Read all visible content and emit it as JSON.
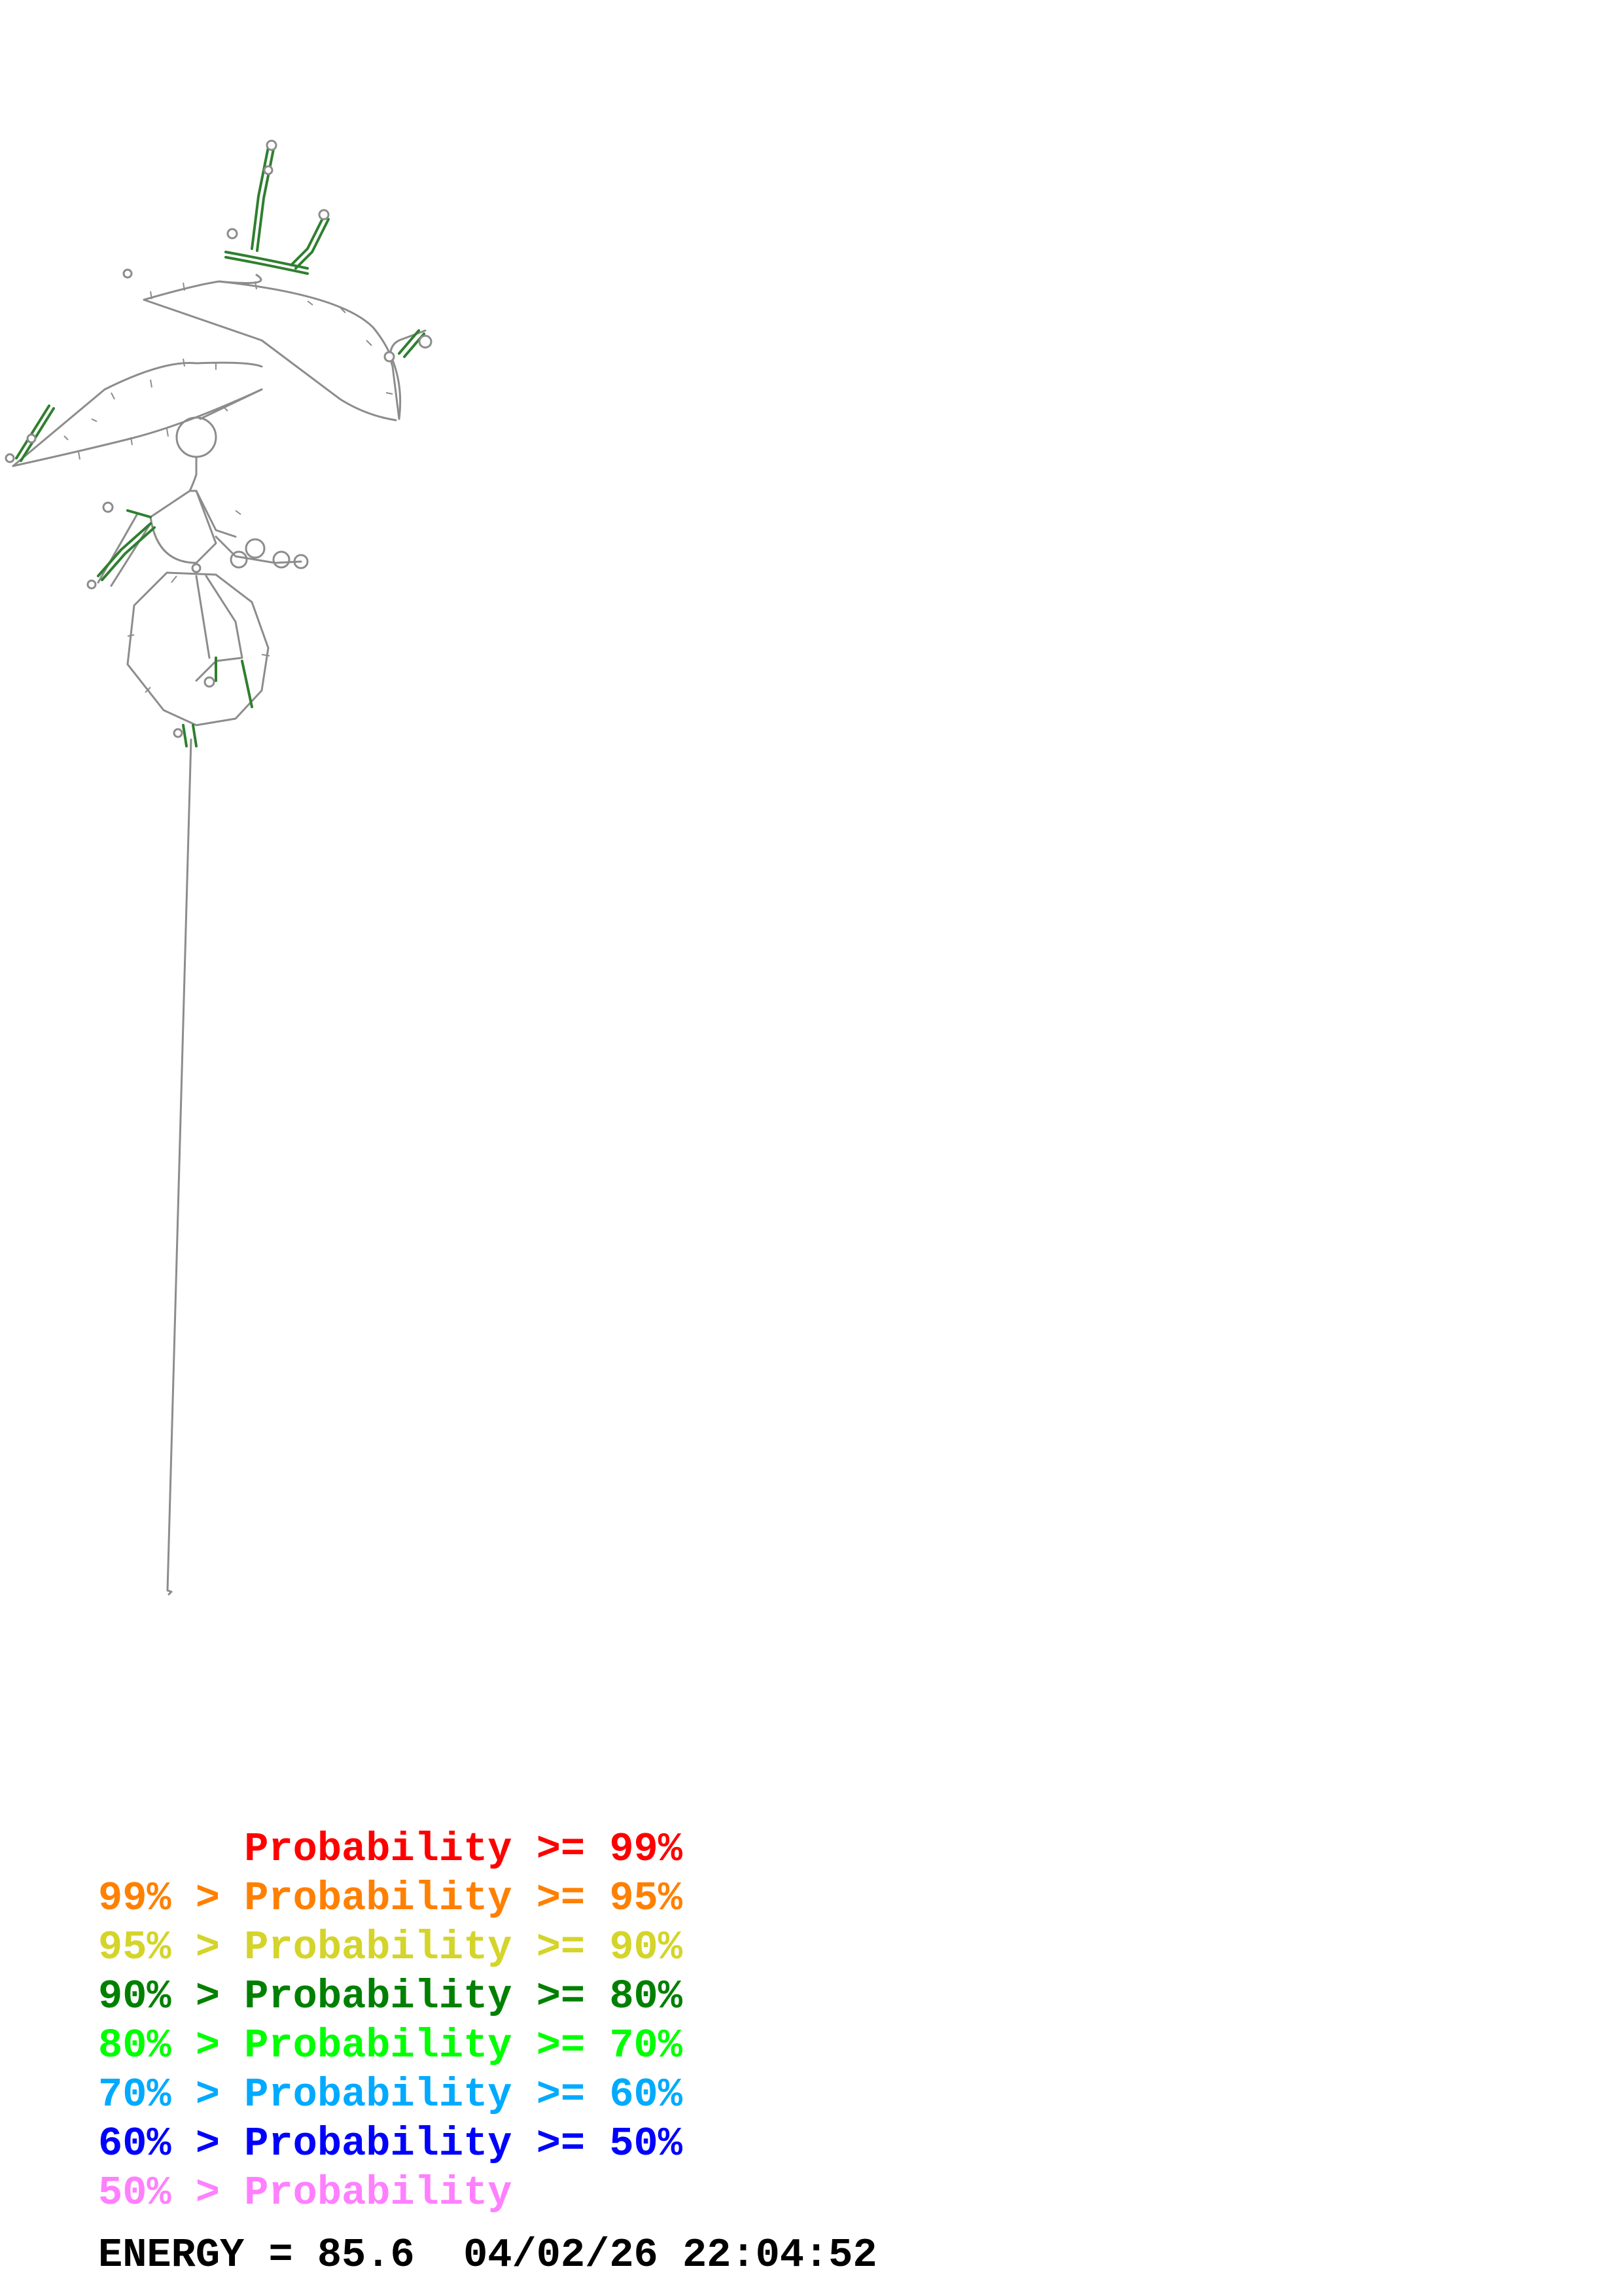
{
  "legend": [
    {
      "text": "      Probability >= 99%",
      "color": "#ff0000"
    },
    {
      "text": "99% > Probability >= 95%",
      "color": "#ff8000"
    },
    {
      "text": "95% > Probability >= 90%",
      "color": "#d4d42a"
    },
    {
      "text": "90% > Probability >= 80%",
      "color": "#008000"
    },
    {
      "text": "80% > Probability >= 70%",
      "color": "#00ff00"
    },
    {
      "text": "70% > Probability >= 60%",
      "color": "#00aaff"
    },
    {
      "text": "60% > Probability >= 50%",
      "color": "#0000ff"
    },
    {
      "text": "50% > Probability",
      "color": "#ff80ff"
    }
  ],
  "footer": {
    "energy": "ENERGY = 85.6  04/02/26 22:04:52"
  },
  "diagram": {
    "stroke_color": "#808080",
    "helix_color": "#008000"
  }
}
